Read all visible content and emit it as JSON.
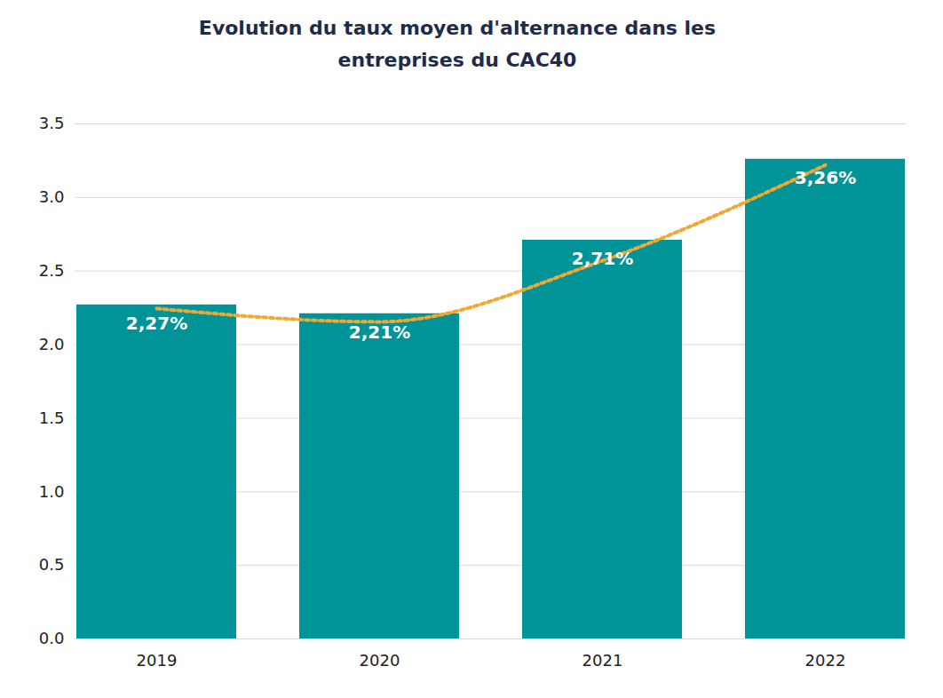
{
  "chart_data": {
    "type": "bar",
    "title": "Evolution du taux moyen d'alternance dans les entreprises du CAC40",
    "categories": [
      "2019",
      "2020",
      "2021",
      "2022"
    ],
    "values": [
      2.27,
      2.21,
      2.71,
      3.26
    ],
    "value_labels": [
      "2,27%",
      "2,21%",
      "2,71%",
      "3,26%"
    ],
    "data_labels": true,
    "color": "#009499",
    "trend": {
      "type": "line",
      "values": [
        2.245,
        2.155,
        2.57,
        3.22
      ],
      "color": "#f2a72e",
      "line_style": "dotted"
    },
    "ylim": [
      0,
      3.5
    ],
    "yticks": [
      {
        "value": 0,
        "label": "0.0"
      },
      0.5,
      {
        "value": 1,
        "label": "1.0"
      },
      1.5,
      {
        "value": 2,
        "label": "2.0"
      },
      2.5,
      {
        "value": 3,
        "label": "3.0"
      },
      3.5
    ],
    "grid": true
  }
}
